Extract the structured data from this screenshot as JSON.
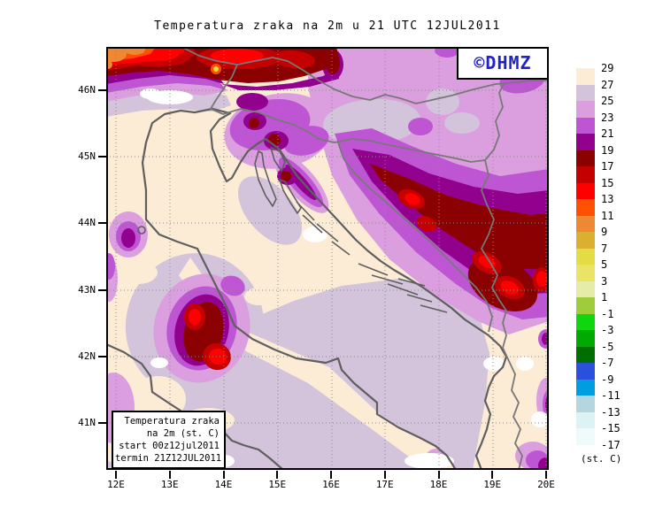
{
  "title": "Temperatura zraka na 2m u 21 UTC 12JUL2011",
  "logo": {
    "text": "©DHMZ",
    "color": "#2222CC"
  },
  "info_box": {
    "lines": [
      "Temperatura zraka",
      "na 2m (st. C)",
      "start 00z12jul2011",
      "termin 21Z12JUL2011"
    ]
  },
  "axes": {
    "lat_labels": [
      "46N",
      "45N",
      "44N",
      "43N",
      "42N",
      "41N"
    ],
    "lon_labels": [
      "12E",
      "13E",
      "14E",
      "15E",
      "16E",
      "17E",
      "18E",
      "19E",
      "20E"
    ]
  },
  "legend": {
    "unit_label": "(st. C)",
    "values": [
      "29",
      "27",
      "25",
      "23",
      "21",
      "19",
      "17",
      "15",
      "13",
      "11",
      "9",
      "7",
      "5",
      "3",
      "1",
      "-1",
      "-3",
      "-5",
      "-7",
      "-9",
      "-11",
      "-13",
      "-15",
      "-17"
    ],
    "colors": [
      "#FCEBD5",
      "#D3C3DB",
      "#DB9FDF",
      "#BE56D4",
      "#92008E",
      "#8B0000",
      "#C40000",
      "#FF0000",
      "#FF4F00",
      "#EE8832",
      "#DBB030",
      "#E3DC45",
      "#E9E465",
      "#E4ECA8",
      "#9FCC3B",
      "#0FD60F",
      "#00AA00",
      "#006E00",
      "#2B50DE",
      "#009EE0",
      "#B5D6DE",
      "#DDF2F2",
      "#EFFAFA"
    ]
  },
  "map_palette": {
    "above_29": "#FFFFFF",
    "sea_warm": "#FCEBD5",
    "grid_color": "#8a8a8a",
    "coast_color": "#5f5f5f",
    "border_color": "#787878"
  }
}
